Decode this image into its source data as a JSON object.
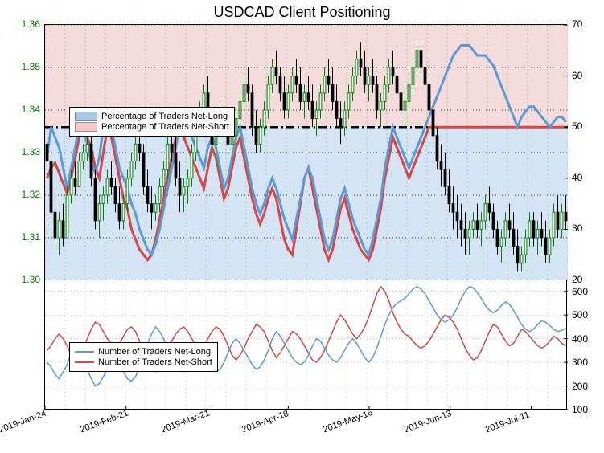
{
  "title": "USDCAD Client Positioning",
  "main_panel": {
    "left_axis": {
      "color": "#008000",
      "ticks": [
        1.3,
        1.31,
        1.32,
        1.33,
        1.34,
        1.35,
        1.36
      ],
      "min": 1.3,
      "max": 1.36,
      "fontsize": 12
    },
    "right_axis": {
      "color": "#000000",
      "ticks": [
        20,
        30,
        40,
        50,
        60,
        70
      ],
      "min": 20,
      "max": 70,
      "fontsize": 12
    },
    "fifty_line": 50,
    "legend": {
      "long_label": "Percentage of Traders Net-Long",
      "short_label": "Percentage of Traders Net-Short",
      "long_color": "#a8c8e8",
      "short_color": "#f0c8c8",
      "border": "#666666"
    },
    "grid_color": "#008000",
    "grid_dash": "2,3",
    "candle_count": 130,
    "candles": [
      {
        "o": 1.332,
        "h": 1.336,
        "l": 1.326,
        "c": 1.328
      },
      {
        "o": 1.328,
        "h": 1.33,
        "l": 1.314,
        "c": 1.316
      },
      {
        "o": 1.316,
        "h": 1.322,
        "l": 1.308,
        "c": 1.31
      },
      {
        "o": 1.31,
        "h": 1.316,
        "l": 1.306,
        "c": 1.314
      },
      {
        "o": 1.314,
        "h": 1.318,
        "l": 1.308,
        "c": 1.31
      },
      {
        "o": 1.31,
        "h": 1.322,
        "l": 1.31,
        "c": 1.32
      },
      {
        "o": 1.32,
        "h": 1.326,
        "l": 1.318,
        "c": 1.324
      },
      {
        "o": 1.324,
        "h": 1.328,
        "l": 1.32,
        "c": 1.322
      },
      {
        "o": 1.322,
        "h": 1.33,
        "l": 1.322,
        "c": 1.328
      },
      {
        "o": 1.328,
        "h": 1.332,
        "l": 1.326,
        "c": 1.33
      },
      {
        "o": 1.33,
        "h": 1.334,
        "l": 1.328,
        "c": 1.332
      },
      {
        "o": 1.332,
        "h": 1.334,
        "l": 1.322,
        "c": 1.324
      },
      {
        "o": 1.324,
        "h": 1.326,
        "l": 1.312,
        "c": 1.314
      },
      {
        "o": 1.314,
        "h": 1.32,
        "l": 1.31,
        "c": 1.318
      },
      {
        "o": 1.318,
        "h": 1.322,
        "l": 1.314,
        "c": 1.32
      },
      {
        "o": 1.32,
        "h": 1.326,
        "l": 1.318,
        "c": 1.324
      },
      {
        "o": 1.324,
        "h": 1.328,
        "l": 1.32,
        "c": 1.322
      },
      {
        "o": 1.322,
        "h": 1.324,
        "l": 1.316,
        "c": 1.318
      },
      {
        "o": 1.318,
        "h": 1.322,
        "l": 1.312,
        "c": 1.314
      },
      {
        "o": 1.314,
        "h": 1.32,
        "l": 1.312,
        "c": 1.318
      },
      {
        "o": 1.318,
        "h": 1.326,
        "l": 1.316,
        "c": 1.324
      },
      {
        "o": 1.324,
        "h": 1.33,
        "l": 1.322,
        "c": 1.328
      },
      {
        "o": 1.328,
        "h": 1.334,
        "l": 1.326,
        "c": 1.332
      },
      {
        "o": 1.332,
        "h": 1.336,
        "l": 1.328,
        "c": 1.33
      },
      {
        "o": 1.33,
        "h": 1.332,
        "l": 1.32,
        "c": 1.322
      },
      {
        "o": 1.322,
        "h": 1.326,
        "l": 1.316,
        "c": 1.318
      },
      {
        "o": 1.318,
        "h": 1.322,
        "l": 1.312,
        "c": 1.316
      },
      {
        "o": 1.316,
        "h": 1.32,
        "l": 1.314,
        "c": 1.318
      },
      {
        "o": 1.318,
        "h": 1.324,
        "l": 1.316,
        "c": 1.322
      },
      {
        "o": 1.322,
        "h": 1.328,
        "l": 1.32,
        "c": 1.326
      },
      {
        "o": 1.326,
        "h": 1.334,
        "l": 1.324,
        "c": 1.332
      },
      {
        "o": 1.332,
        "h": 1.336,
        "l": 1.328,
        "c": 1.33
      },
      {
        "o": 1.33,
        "h": 1.334,
        "l": 1.322,
        "c": 1.324
      },
      {
        "o": 1.324,
        "h": 1.328,
        "l": 1.316,
        "c": 1.32
      },
      {
        "o": 1.32,
        "h": 1.324,
        "l": 1.316,
        "c": 1.322
      },
      {
        "o": 1.322,
        "h": 1.326,
        "l": 1.318,
        "c": 1.324
      },
      {
        "o": 1.324,
        "h": 1.332,
        "l": 1.322,
        "c": 1.33
      },
      {
        "o": 1.33,
        "h": 1.338,
        "l": 1.328,
        "c": 1.336
      },
      {
        "o": 1.336,
        "h": 1.342,
        "l": 1.334,
        "c": 1.34
      },
      {
        "o": 1.34,
        "h": 1.346,
        "l": 1.338,
        "c": 1.344
      },
      {
        "o": 1.344,
        "h": 1.348,
        "l": 1.336,
        "c": 1.338
      },
      {
        "o": 1.338,
        "h": 1.342,
        "l": 1.33,
        "c": 1.332
      },
      {
        "o": 1.332,
        "h": 1.336,
        "l": 1.326,
        "c": 1.334
      },
      {
        "o": 1.334,
        "h": 1.34,
        "l": 1.332,
        "c": 1.338
      },
      {
        "o": 1.338,
        "h": 1.342,
        "l": 1.334,
        "c": 1.336
      },
      {
        "o": 1.336,
        "h": 1.34,
        "l": 1.33,
        "c": 1.332
      },
      {
        "o": 1.332,
        "h": 1.336,
        "l": 1.328,
        "c": 1.334
      },
      {
        "o": 1.334,
        "h": 1.34,
        "l": 1.332,
        "c": 1.338
      },
      {
        "o": 1.338,
        "h": 1.344,
        "l": 1.336,
        "c": 1.342
      },
      {
        "o": 1.342,
        "h": 1.348,
        "l": 1.34,
        "c": 1.346
      },
      {
        "o": 1.346,
        "h": 1.35,
        "l": 1.342,
        "c": 1.344
      },
      {
        "o": 1.344,
        "h": 1.346,
        "l": 1.334,
        "c": 1.336
      },
      {
        "o": 1.336,
        "h": 1.34,
        "l": 1.33,
        "c": 1.332
      },
      {
        "o": 1.332,
        "h": 1.338,
        "l": 1.33,
        "c": 1.336
      },
      {
        "o": 1.336,
        "h": 1.342,
        "l": 1.334,
        "c": 1.34
      },
      {
        "o": 1.34,
        "h": 1.348,
        "l": 1.338,
        "c": 1.346
      },
      {
        "o": 1.346,
        "h": 1.352,
        "l": 1.344,
        "c": 1.35
      },
      {
        "o": 1.35,
        "h": 1.354,
        "l": 1.346,
        "c": 1.348
      },
      {
        "o": 1.348,
        "h": 1.35,
        "l": 1.342,
        "c": 1.344
      },
      {
        "o": 1.344,
        "h": 1.348,
        "l": 1.338,
        "c": 1.34
      },
      {
        "o": 1.34,
        "h": 1.346,
        "l": 1.338,
        "c": 1.344
      },
      {
        "o": 1.344,
        "h": 1.35,
        "l": 1.342,
        "c": 1.348
      },
      {
        "o": 1.348,
        "h": 1.352,
        "l": 1.344,
        "c": 1.346
      },
      {
        "o": 1.346,
        "h": 1.35,
        "l": 1.34,
        "c": 1.342
      },
      {
        "o": 1.342,
        "h": 1.346,
        "l": 1.338,
        "c": 1.344
      },
      {
        "o": 1.344,
        "h": 1.348,
        "l": 1.34,
        "c": 1.342
      },
      {
        "o": 1.342,
        "h": 1.346,
        "l": 1.336,
        "c": 1.338
      },
      {
        "o": 1.338,
        "h": 1.342,
        "l": 1.334,
        "c": 1.34
      },
      {
        "o": 1.34,
        "h": 1.346,
        "l": 1.338,
        "c": 1.344
      },
      {
        "o": 1.344,
        "h": 1.35,
        "l": 1.342,
        "c": 1.348
      },
      {
        "o": 1.348,
        "h": 1.352,
        "l": 1.344,
        "c": 1.346
      },
      {
        "o": 1.346,
        "h": 1.35,
        "l": 1.34,
        "c": 1.342
      },
      {
        "o": 1.342,
        "h": 1.346,
        "l": 1.336,
        "c": 1.338
      },
      {
        "o": 1.338,
        "h": 1.342,
        "l": 1.332,
        "c": 1.336
      },
      {
        "o": 1.336,
        "h": 1.342,
        "l": 1.334,
        "c": 1.34
      },
      {
        "o": 1.34,
        "h": 1.346,
        "l": 1.338,
        "c": 1.344
      },
      {
        "o": 1.344,
        "h": 1.35,
        "l": 1.342,
        "c": 1.348
      },
      {
        "o": 1.348,
        "h": 1.354,
        "l": 1.346,
        "c": 1.352
      },
      {
        "o": 1.352,
        "h": 1.356,
        "l": 1.348,
        "c": 1.35
      },
      {
        "o": 1.35,
        "h": 1.354,
        "l": 1.344,
        "c": 1.346
      },
      {
        "o": 1.346,
        "h": 1.35,
        "l": 1.342,
        "c": 1.348
      },
      {
        "o": 1.348,
        "h": 1.352,
        "l": 1.344,
        "c": 1.346
      },
      {
        "o": 1.346,
        "h": 1.348,
        "l": 1.338,
        "c": 1.34
      },
      {
        "o": 1.34,
        "h": 1.344,
        "l": 1.336,
        "c": 1.342
      },
      {
        "o": 1.342,
        "h": 1.348,
        "l": 1.34,
        "c": 1.346
      },
      {
        "o": 1.346,
        "h": 1.352,
        "l": 1.344,
        "c": 1.35
      },
      {
        "o": 1.35,
        "h": 1.354,
        "l": 1.346,
        "c": 1.348
      },
      {
        "o": 1.348,
        "h": 1.35,
        "l": 1.342,
        "c": 1.344
      },
      {
        "o": 1.344,
        "h": 1.346,
        "l": 1.338,
        "c": 1.34
      },
      {
        "o": 1.34,
        "h": 1.344,
        "l": 1.336,
        "c": 1.342
      },
      {
        "o": 1.342,
        "h": 1.348,
        "l": 1.34,
        "c": 1.346
      },
      {
        "o": 1.346,
        "h": 1.352,
        "l": 1.344,
        "c": 1.35
      },
      {
        "o": 1.35,
        "h": 1.356,
        "l": 1.348,
        "c": 1.354
      },
      {
        "o": 1.354,
        "h": 1.356,
        "l": 1.348,
        "c": 1.35
      },
      {
        "o": 1.35,
        "h": 1.352,
        "l": 1.344,
        "c": 1.346
      },
      {
        "o": 1.346,
        "h": 1.348,
        "l": 1.338,
        "c": 1.34
      },
      {
        "o": 1.34,
        "h": 1.342,
        "l": 1.332,
        "c": 1.334
      },
      {
        "o": 1.334,
        "h": 1.336,
        "l": 1.326,
        "c": 1.328
      },
      {
        "o": 1.328,
        "h": 1.332,
        "l": 1.322,
        "c": 1.326
      },
      {
        "o": 1.326,
        "h": 1.33,
        "l": 1.32,
        "c": 1.322
      },
      {
        "o": 1.322,
        "h": 1.326,
        "l": 1.316,
        "c": 1.318
      },
      {
        "o": 1.318,
        "h": 1.322,
        "l": 1.312,
        "c": 1.316
      },
      {
        "o": 1.316,
        "h": 1.32,
        "l": 1.31,
        "c": 1.314
      },
      {
        "o": 1.314,
        "h": 1.318,
        "l": 1.308,
        "c": 1.312
      },
      {
        "o": 1.312,
        "h": 1.316,
        "l": 1.306,
        "c": 1.31
      },
      {
        "o": 1.31,
        "h": 1.314,
        "l": 1.306,
        "c": 1.312
      },
      {
        "o": 1.312,
        "h": 1.316,
        "l": 1.31,
        "c": 1.314
      },
      {
        "o": 1.314,
        "h": 1.318,
        "l": 1.31,
        "c": 1.312
      },
      {
        "o": 1.312,
        "h": 1.316,
        "l": 1.308,
        "c": 1.314
      },
      {
        "o": 1.314,
        "h": 1.32,
        "l": 1.312,
        "c": 1.318
      },
      {
        "o": 1.318,
        "h": 1.322,
        "l": 1.314,
        "c": 1.316
      },
      {
        "o": 1.316,
        "h": 1.318,
        "l": 1.31,
        "c": 1.312
      },
      {
        "o": 1.312,
        "h": 1.314,
        "l": 1.306,
        "c": 1.308
      },
      {
        "o": 1.308,
        "h": 1.312,
        "l": 1.304,
        "c": 1.31
      },
      {
        "o": 1.31,
        "h": 1.316,
        "l": 1.308,
        "c": 1.314
      },
      {
        "o": 1.314,
        "h": 1.318,
        "l": 1.31,
        "c": 1.312
      },
      {
        "o": 1.312,
        "h": 1.316,
        "l": 1.306,
        "c": 1.308
      },
      {
        "o": 1.308,
        "h": 1.312,
        "l": 1.302,
        "c": 1.304
      },
      {
        "o": 1.304,
        "h": 1.308,
        "l": 1.302,
        "c": 1.306
      },
      {
        "o": 1.306,
        "h": 1.312,
        "l": 1.304,
        "c": 1.31
      },
      {
        "o": 1.31,
        "h": 1.316,
        "l": 1.308,
        "c": 1.314
      },
      {
        "o": 1.314,
        "h": 1.316,
        "l": 1.308,
        "c": 1.31
      },
      {
        "o": 1.31,
        "h": 1.314,
        "l": 1.306,
        "c": 1.312
      },
      {
        "o": 1.312,
        "h": 1.316,
        "l": 1.308,
        "c": 1.31
      },
      {
        "o": 1.31,
        "h": 1.314,
        "l": 1.304,
        "c": 1.306
      },
      {
        "o": 1.306,
        "h": 1.312,
        "l": 1.304,
        "c": 1.31
      },
      {
        "o": 1.31,
        "h": 1.318,
        "l": 1.308,
        "c": 1.316
      },
      {
        "o": 1.316,
        "h": 1.32,
        "l": 1.31,
        "c": 1.312
      },
      {
        "o": 1.312,
        "h": 1.318,
        "l": 1.31,
        "c": 1.316
      },
      {
        "o": 1.316,
        "h": 1.32,
        "l": 1.312,
        "c": 1.314
      }
    ],
    "pct_long_blue": [
      44,
      50,
      48,
      46,
      42,
      38,
      42,
      46,
      50,
      49,
      47,
      43,
      41,
      44,
      50,
      52,
      50,
      46,
      42,
      40,
      38,
      35,
      33,
      30,
      28,
      26,
      25,
      27,
      30,
      34,
      38,
      42,
      46,
      50,
      52,
      50,
      48,
      46,
      44,
      42,
      46,
      48,
      46,
      42,
      38,
      40,
      44,
      48,
      50,
      46,
      42,
      38,
      35,
      33,
      35,
      38,
      40,
      38,
      35,
      32,
      30,
      28,
      32,
      36,
      40,
      42,
      40,
      36,
      32,
      28,
      26,
      28,
      32,
      36,
      38,
      35,
      32,
      30,
      28,
      26,
      25,
      28,
      32,
      36,
      42,
      46,
      50,
      48,
      46,
      44,
      42,
      44,
      46,
      48,
      50,
      52,
      54,
      56,
      58,
      60,
      62,
      64,
      65,
      66,
      66,
      66,
      65,
      64,
      64,
      64,
      63,
      62,
      60,
      58,
      56,
      54,
      52,
      50,
      52,
      53,
      54,
      54,
      53,
      52,
      51,
      50,
      51,
      52,
      52,
      51
    ],
    "pct_long_red": [
      40,
      42,
      43,
      41,
      39,
      37,
      40,
      44,
      48,
      50,
      48,
      46,
      42,
      40,
      45,
      50,
      48,
      44,
      40,
      36,
      34,
      30,
      28,
      26,
      25,
      24,
      25,
      28,
      32,
      36,
      40,
      44,
      48,
      50,
      48,
      46,
      44,
      42,
      40,
      38,
      42,
      46,
      44,
      40,
      36,
      38,
      42,
      46,
      48,
      44,
      40,
      36,
      33,
      31,
      33,
      36,
      38,
      36,
      32,
      28,
      26,
      25,
      30,
      35,
      40,
      42,
      38,
      34,
      30,
      26,
      24,
      26,
      30,
      34,
      36,
      33,
      30,
      28,
      26,
      25,
      24,
      26,
      30,
      34,
      40,
      44,
      48,
      46,
      44,
      42,
      40,
      42,
      44,
      46,
      48,
      50,
      50,
      50,
      50,
      50,
      50,
      50,
      50,
      50,
      50,
      50,
      50,
      50,
      50,
      50,
      50,
      50,
      50,
      50,
      50,
      50,
      50,
      50,
      50,
      50,
      50,
      50,
      50,
      50,
      50,
      50,
      50,
      50,
      50,
      50
    ],
    "candle_up_color": "#008000",
    "candle_dn_color": "#000000",
    "long_fill": "#d4e4f4",
    "short_fill": "#f4dcdc",
    "blue_line": "#5b9bd5",
    "red_line": "#d94545"
  },
  "sub_panel": {
    "right_axis": {
      "ticks": [
        100,
        200,
        300,
        400,
        500,
        600
      ],
      "min": 100,
      "max": 650
    },
    "legend": {
      "long_label": "Number of Traders Net-Long",
      "short_label": "Number of Traders Net-Short",
      "long_color": "#5b9bd5",
      "short_color": "#d94545"
    },
    "long_data": [
      300,
      280,
      250,
      230,
      260,
      290,
      340,
      370,
      350,
      310,
      270,
      230,
      200,
      210,
      240,
      270,
      290,
      310,
      290,
      260,
      230,
      220,
      240,
      280,
      330,
      380,
      420,
      450,
      430,
      400,
      360,
      320,
      290,
      270,
      260,
      280,
      310,
      340,
      360,
      340,
      310,
      280,
      260,
      270,
      300,
      340,
      380,
      400,
      380,
      350,
      320,
      290,
      270,
      280,
      310,
      350,
      400,
      430,
      410,
      380,
      350,
      320,
      300,
      290,
      300,
      330,
      370,
      400,
      390,
      360,
      330,
      310,
      300,
      320,
      350,
      380,
      400,
      380,
      350,
      320,
      300,
      320,
      360,
      410,
      460,
      500,
      530,
      550,
      560,
      570,
      590,
      610,
      620,
      610,
      590,
      560,
      530,
      500,
      480,
      470,
      480,
      500,
      530,
      570,
      600,
      620,
      615,
      595,
      570,
      540,
      520,
      510,
      520,
      540,
      555,
      545,
      520,
      490,
      460,
      440,
      430,
      440,
      460,
      475,
      470,
      455,
      440,
      430,
      435,
      445
    ],
    "short_data": [
      350,
      370,
      400,
      420,
      400,
      370,
      330,
      300,
      320,
      360,
      400,
      440,
      470,
      460,
      430,
      400,
      380,
      360,
      380,
      410,
      440,
      450,
      430,
      390,
      350,
      310,
      280,
      260,
      280,
      310,
      350,
      390,
      420,
      440,
      450,
      430,
      400,
      370,
      350,
      370,
      400,
      430,
      450,
      440,
      410,
      370,
      330,
      310,
      330,
      360,
      400,
      430,
      460,
      450,
      430,
      390,
      350,
      320,
      340,
      370,
      400,
      430,
      420,
      400,
      370,
      340,
      310,
      300,
      320,
      350,
      390,
      430,
      470,
      500,
      480,
      450,
      420,
      400,
      420,
      450,
      490,
      540,
      590,
      620,
      600,
      560,
      510,
      470,
      440,
      420,
      410,
      390,
      370,
      360,
      370,
      390,
      420,
      450,
      480,
      500,
      490,
      470,
      440,
      400,
      360,
      330,
      310,
      320,
      350,
      390,
      430,
      460,
      450,
      420,
      390,
      370,
      380,
      410,
      440,
      430,
      410,
      390,
      370,
      360,
      370,
      390,
      410,
      400,
      380,
      370
    ]
  },
  "x_axis": {
    "labels": [
      "2019-Jan-24",
      "2019-Feb-21",
      "2019-Mar-21",
      "2019-Apr-18",
      "2019-May-16",
      "2019-Jun-13",
      "2019-Jul-11"
    ],
    "positions": [
      0,
      0.155,
      0.31,
      0.465,
      0.62,
      0.775,
      0.93
    ]
  }
}
